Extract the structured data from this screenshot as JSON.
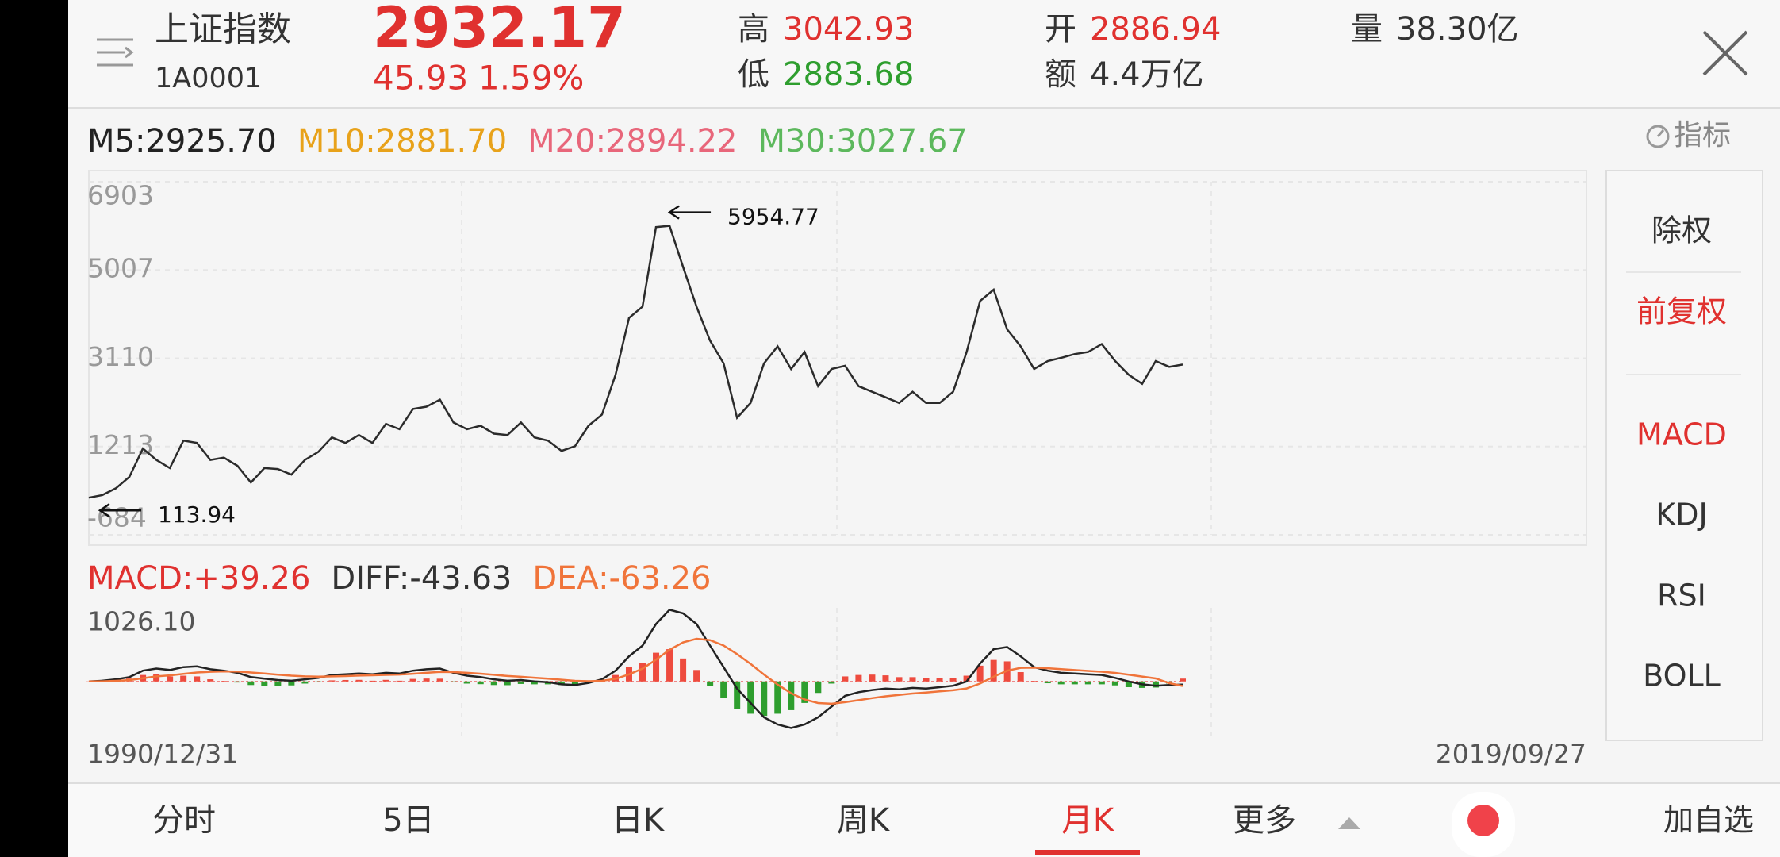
{
  "header": {
    "name": "上证指数",
    "code": "1A0001",
    "price": "2932.17",
    "change": "45.93",
    "change_pct": "1.59%",
    "high_label": "高",
    "high": "3042.93",
    "low_label": "低",
    "low": "2883.68",
    "open_label": "开",
    "open": "2886.94",
    "amount_label": "额",
    "amount": "4.4万亿",
    "volume_label": "量",
    "volume": "38.30亿"
  },
  "chart_data": [
    {
      "type": "line",
      "indicators": [
        {
          "text": "M5:2925.70",
          "color": "#222222"
        },
        {
          "text": "M10:2881.70",
          "color": "#e8a21a"
        },
        {
          "text": "M20:2894.22",
          "color": "#e8667a"
        },
        {
          "text": "M30:3027.67",
          "color": "#5cb85c"
        }
      ],
      "ylim": [
        -684,
        6903
      ],
      "yticks": [
        6903,
        5007,
        3110,
        1213,
        -684
      ],
      "grid": true,
      "annotations": [
        5954.77,
        113.94
      ],
      "series": [
        {
          "color": "#2b2b2b",
          "values": [
            113.94,
            170,
            315,
            560,
            1170,
            925,
            750,
            1340,
            1290,
            925,
            975,
            800,
            440,
            750,
            730,
            610,
            925,
            1100,
            1410,
            1290,
            1460,
            1290,
            1700,
            1585,
            2020,
            2070,
            2220,
            1730,
            1585,
            1660,
            1490,
            1460,
            1730,
            1410,
            1340,
            1120,
            1220,
            1660,
            1900,
            2755,
            3975,
            4220,
            5927,
            5954.77,
            5073,
            4220,
            3490,
            3000,
            1830,
            2150,
            3000,
            3365,
            2880,
            3245,
            2510,
            2880,
            2950,
            2510,
            2390,
            2270,
            2150,
            2390,
            2150,
            2150,
            2390,
            3245,
            4340,
            4585,
            3730,
            3365,
            2880,
            3050,
            3120,
            3200,
            3245,
            3415,
            3050,
            2755,
            2560,
            3050,
            2925,
            2975
          ]
        }
      ]
    },
    {
      "type": "macd",
      "indicators": [
        {
          "text": "MACD:+39.26",
          "color": "#e0312f"
        },
        {
          "text": "DIFF:-43.63",
          "color": "#333333"
        },
        {
          "text": "DEA:-63.26",
          "color": "#f0743a"
        }
      ],
      "ylim": [
        -821,
        1026.1
      ],
      "yticks": [
        {
          "value": 1026.1,
          "label": "1026.10"
        }
      ],
      "x_labels": [
        "1990/12/31",
        "2019/09/27"
      ],
      "bars": {
        "up_color": "#ee4b3e",
        "down_color": "#2e9e2e",
        "values": [
          0,
          10,
          25,
          40,
          90,
          100,
          70,
          80,
          70,
          30,
          5,
          -15,
          -50,
          -60,
          -60,
          -55,
          -30,
          -10,
          15,
          20,
          22,
          10,
          22,
          10,
          35,
          40,
          38,
          -8,
          -30,
          -38,
          -50,
          -52,
          -35,
          -40,
          -40,
          -50,
          -46,
          -18,
          18,
          90,
          200,
          260,
          400,
          450,
          320,
          160,
          -60,
          -230,
          -380,
          -450,
          -480,
          -450,
          -400,
          -300,
          -160,
          -30,
          70,
          90,
          95,
          85,
          60,
          60,
          45,
          50,
          50,
          80,
          220,
          300,
          280,
          130,
          5,
          -25,
          -40,
          -40,
          -40,
          -40,
          -55,
          -80,
          -90,
          -85,
          -30,
          39.26
        ]
      },
      "series": [
        {
          "color": "#222222",
          "values": [
            0,
            10,
            30,
            60,
            150,
            180,
            160,
            200,
            210,
            170,
            150,
            120,
            60,
            40,
            20,
            10,
            30,
            50,
            90,
            100,
            110,
            100,
            120,
            110,
            150,
            170,
            180,
            120,
            80,
            60,
            30,
            10,
            20,
            0,
            -10,
            -40,
            -50,
            -20,
            30,
            150,
            350,
            500,
            800,
            1000,
            950,
            800,
            500,
            200,
            -100,
            -300,
            -500,
            -600,
            -650,
            -600,
            -500,
            -350,
            -200,
            -150,
            -120,
            -100,
            -110,
            -90,
            -100,
            -80,
            -60,
            0,
            250,
            450,
            480,
            350,
            200,
            150,
            120,
            110,
            100,
            90,
            50,
            0,
            -40,
            -60,
            -50,
            -43.63
          ]
        },
        {
          "color": "#f0743a",
          "values": [
            0,
            2,
            8,
            18,
            45,
            70,
            85,
            105,
            125,
            135,
            140,
            138,
            125,
            110,
            95,
            80,
            70,
            66,
            70,
            75,
            82,
            86,
            92,
            96,
            107,
            120,
            132,
            130,
            120,
            108,
            93,
            76,
            65,
            52,
            40,
            24,
            9,
            3,
            8,
            36,
            99,
            179,
            303,
            442,
            544,
            595,
            576,
            501,
            381,
            245,
            96,
            -43,
            -164,
            -251,
            -301,
            -311,
            -289,
            -261,
            -233,
            -207,
            -187,
            -168,
            -154,
            -139,
            -123,
            -98,
            -29,
            67,
            150,
            190,
            192,
            184,
            171,
            159,
            147,
            136,
            119,
            95,
            68,
            42,
            -23,
            -63.26
          ]
        }
      ]
    }
  ],
  "sidebar": {
    "title": "指标",
    "items": [
      {
        "label": "除权",
        "selected": false
      },
      {
        "label": "前复权",
        "selected": true
      },
      {
        "label": "MACD",
        "selected": true
      },
      {
        "label": "KDJ",
        "selected": false
      },
      {
        "label": "RSI",
        "selected": false
      },
      {
        "label": "BOLL",
        "selected": false
      }
    ]
  },
  "tabs": [
    {
      "label": "分时",
      "selected": false
    },
    {
      "label": "5日",
      "selected": false
    },
    {
      "label": "日K",
      "selected": false
    },
    {
      "label": "周K",
      "selected": false
    },
    {
      "label": "月K",
      "selected": true
    },
    {
      "label": "更多",
      "selected": false
    }
  ],
  "add_button": "加自选"
}
